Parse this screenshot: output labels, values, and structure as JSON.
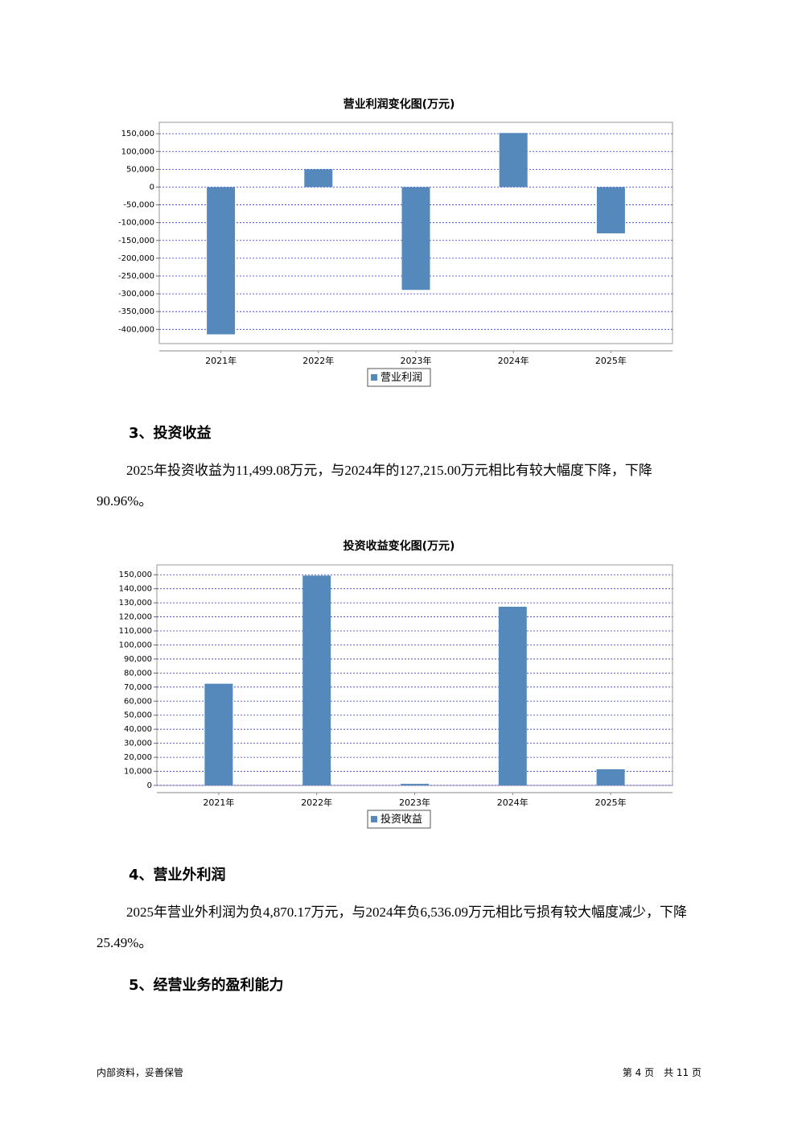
{
  "chart_data": [
    {
      "type": "bar",
      "title": "营业利润变化图(万元)",
      "categories": [
        "2021年",
        "2022年",
        "2023年",
        "2024年",
        "2025年"
      ],
      "series": [
        {
          "name": "营业利润",
          "color": "#5588bb",
          "values": [
            -414000,
            50000,
            -289000,
            152000,
            -130000
          ]
        }
      ],
      "ylim": [
        -440000,
        182000
      ],
      "yticks": [
        {
          "value": 150000,
          "label": "150,000"
        },
        {
          "value": 100000,
          "label": "100,000"
        },
        {
          "value": 50000,
          "label": "50,000"
        },
        0,
        {
          "value": -50000,
          "label": "-50,000"
        },
        {
          "value": -100000,
          "label": "-100,000"
        },
        {
          "value": -150000,
          "label": "-150,000"
        },
        {
          "value": -200000,
          "label": "-200,000"
        },
        {
          "value": -250000,
          "label": "-250,000"
        },
        {
          "value": -300000,
          "label": "-300,000"
        },
        {
          "value": -350000,
          "label": "-350,000"
        },
        {
          "value": -400000,
          "label": "-400,000"
        }
      ],
      "grid": true,
      "legend": "bottom"
    },
    {
      "type": "bar",
      "title": "投资收益变化图(万元)",
      "categories": [
        "2021年",
        "2022年",
        "2023年",
        "2024年",
        "2025年"
      ],
      "series": [
        {
          "name": "投资收益",
          "color": "#5588bb",
          "values": [
            72400,
            149400,
            1100,
            127215,
            11499.08
          ]
        }
      ],
      "ylim": [
        0,
        157000
      ],
      "yticks": [
        0,
        {
          "value": 10000,
          "label": "10,000"
        },
        {
          "value": 20000,
          "label": "20,000"
        },
        {
          "value": 30000,
          "label": "30,000"
        },
        {
          "value": 40000,
          "label": "40,000"
        },
        {
          "value": 50000,
          "label": "50,000"
        },
        {
          "value": 60000,
          "label": "60,000"
        },
        {
          "value": 70000,
          "label": "70,000"
        },
        {
          "value": 80000,
          "label": "80,000"
        },
        {
          "value": 90000,
          "label": "90,000"
        },
        {
          "value": 100000,
          "label": "100,000"
        },
        {
          "value": 110000,
          "label": "110,000"
        },
        {
          "value": 120000,
          "label": "120,000"
        },
        {
          "value": 130000,
          "label": "130,000"
        },
        {
          "value": 140000,
          "label": "140,000"
        },
        {
          "value": 150000,
          "label": "150,000"
        }
      ],
      "grid": true,
      "legend": "bottom"
    }
  ],
  "sections": [
    {
      "heading": "3、投资收益",
      "paragraph": "2025年投资收益为11,499.08万元，与2024年的127,215.00万元相比有较大幅度下降，下降90.96%。"
    },
    {
      "heading": "4、营业外利润",
      "paragraph": "2025年营业外利润为负4,870.17万元，与2024年负6,536.09万元相比亏损有较大幅度减少，下降25.49%。"
    },
    {
      "heading": "5、经营业务的盈利能力"
    }
  ],
  "footer": {
    "left": "内部资料，妥善保管",
    "right": "第 4 页　共 11 页"
  }
}
